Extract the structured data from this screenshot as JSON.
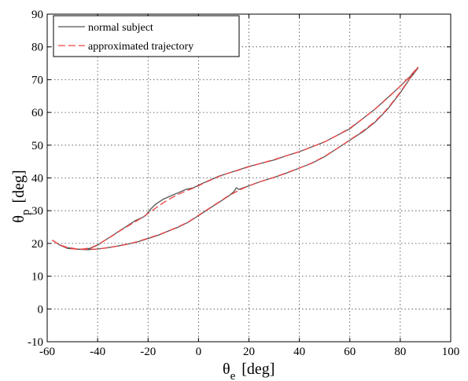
{
  "chart_data": {
    "type": "line",
    "xlabel": {
      "symbol": "θ",
      "subscript": "e",
      "unit": "[deg]"
    },
    "ylabel": {
      "symbol": "θ",
      "subscript": "p",
      "unit": "[deg]"
    },
    "xlim": [
      -60,
      100
    ],
    "ylim": [
      -10,
      90
    ],
    "xticks": [
      -60,
      -40,
      -20,
      0,
      20,
      40,
      60,
      80,
      100
    ],
    "yticks": [
      -10,
      0,
      10,
      20,
      30,
      40,
      50,
      60,
      70,
      80,
      90
    ],
    "grid": true,
    "grid_style": "dotted",
    "legend_position": "top-left",
    "series": [
      {
        "name": "normal subject",
        "color": "#555555",
        "dash": "solid",
        "x": [
          -58,
          -55,
          -52,
          -49,
          -46,
          -43,
          -40,
          -37,
          -34,
          -31,
          -28,
          -25,
          -22,
          -21,
          -20,
          -19,
          -17,
          -14,
          -11,
          -8,
          -5,
          -2,
          0,
          2,
          5,
          8,
          12,
          16,
          20,
          25,
          30,
          35,
          40,
          45,
          50,
          55,
          60,
          65,
          70,
          75,
          80,
          84,
          87,
          84,
          80,
          75,
          70,
          65,
          60,
          55,
          50,
          45,
          40,
          35,
          30,
          25,
          20,
          16,
          15,
          14,
          12,
          8,
          4,
          0,
          -4,
          -8,
          -12,
          -16,
          -20,
          -24,
          -28,
          -32,
          -36,
          -40,
          -44,
          -48,
          -52,
          -55,
          -58
        ],
        "y": [
          21,
          19.5,
          18.5,
          18.3,
          18.2,
          18.5,
          19.5,
          21,
          22.5,
          24,
          25.5,
          27,
          28,
          28.5,
          29.5,
          30.5,
          32,
          33.5,
          34.5,
          35.5,
          36.5,
          37,
          37.8,
          38.5,
          39.5,
          40.5,
          41.5,
          42.5,
          43.5,
          44.5,
          45.5,
          46.8,
          48,
          49.5,
          51,
          53,
          55,
          58,
          61,
          64.5,
          68,
          71,
          73.5,
          70.5,
          66,
          61,
          57,
          54,
          51.5,
          49,
          46.5,
          44.5,
          43,
          41.5,
          40.2,
          39,
          37.6,
          36.5,
          37,
          35.8,
          34.5,
          32.5,
          30.5,
          28.5,
          26.5,
          25,
          23.8,
          22.5,
          21.5,
          20.5,
          19.8,
          19.2,
          18.7,
          18.3,
          18.1,
          18.2,
          18.7,
          19.5,
          21
        ]
      },
      {
        "name": "approximated trajectory",
        "color": "#ee4444",
        "dash": "dashed",
        "x": [
          -58,
          -55,
          -52,
          -49,
          -46,
          -43,
          -40,
          -37,
          -34,
          -31,
          -28,
          -25,
          -22,
          -20,
          -17,
          -14,
          -11,
          -8,
          -5,
          -2,
          0,
          2,
          5,
          8,
          12,
          16,
          20,
          25,
          30,
          35,
          40,
          45,
          50,
          55,
          60,
          65,
          70,
          75,
          80,
          84,
          87,
          84,
          80,
          75,
          70,
          65,
          60,
          55,
          50,
          45,
          40,
          35,
          30,
          25,
          20,
          16,
          12,
          8,
          4,
          0,
          -4,
          -8,
          -12,
          -16,
          -20,
          -24,
          -28,
          -32,
          -36,
          -40,
          -44,
          -48,
          -52,
          -55,
          -58
        ],
        "y": [
          21,
          19.6,
          18.6,
          18.3,
          18.3,
          18.6,
          19.6,
          21,
          22.4,
          23.9,
          25.3,
          26.7,
          28,
          29.2,
          30.8,
          32.4,
          33.8,
          35,
          36,
          36.9,
          37.6,
          38.4,
          39.4,
          40.4,
          41.5,
          42.4,
          43.4,
          44.5,
          45.6,
          46.8,
          48,
          49.5,
          51,
          53,
          55.2,
          58,
          61,
          64.4,
          68,
          71.2,
          73.8,
          70.6,
          66.2,
          61.2,
          57.2,
          54.2,
          51.6,
          49,
          46.6,
          44.6,
          43,
          41.6,
          40.2,
          39,
          37.6,
          36.2,
          34.6,
          32.6,
          30.6,
          28.6,
          26.6,
          25.1,
          23.8,
          22.6,
          21.6,
          20.6,
          19.8,
          19.2,
          18.7,
          18.3,
          18.2,
          18.3,
          18.8,
          19.6,
          21
        ]
      }
    ]
  }
}
